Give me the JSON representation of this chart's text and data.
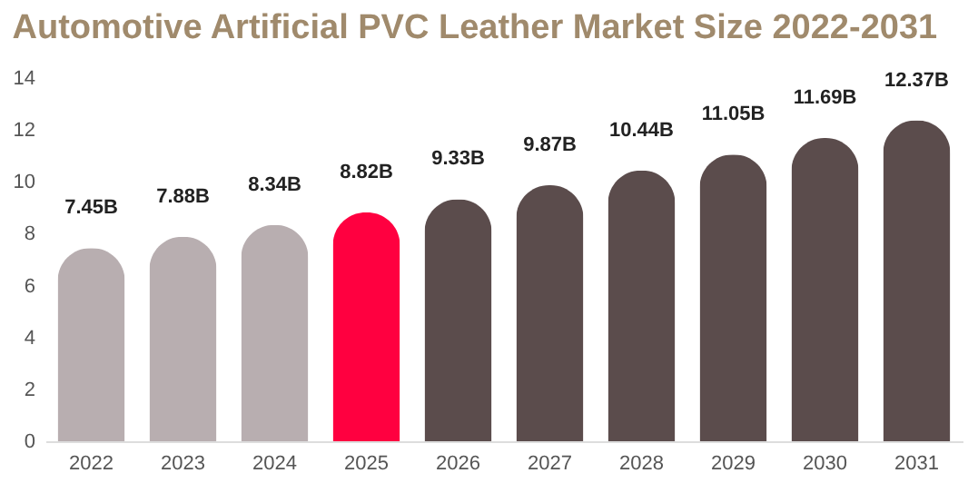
{
  "chart_data": {
    "type": "bar",
    "title": "Automotive Artificial PVC Leather Market Size 2022-2031",
    "categories": [
      "2022",
      "2023",
      "2024",
      "2025",
      "2026",
      "2027",
      "2028",
      "2029",
      "2030",
      "2031"
    ],
    "values": [
      7.45,
      7.88,
      8.34,
      8.82,
      9.33,
      9.87,
      10.44,
      11.05,
      11.69,
      12.37
    ],
    "value_labels": [
      "7.45B",
      "7.88B",
      "8.34B",
      "8.82B",
      "9.33B",
      "9.87B",
      "10.44B",
      "11.05B",
      "11.69B",
      "12.37B"
    ],
    "colors": [
      "#b8aeb0",
      "#b8aeb0",
      "#b8aeb0",
      "#ff0040",
      "#5b4c4c",
      "#5b4c4c",
      "#5b4c4c",
      "#5b4c4c",
      "#5b4c4c",
      "#5b4c4c"
    ],
    "ylim": [
      0,
      14
    ],
    "yticks": [
      0,
      2,
      4,
      6,
      8,
      10,
      12,
      14
    ],
    "grid": false
  }
}
